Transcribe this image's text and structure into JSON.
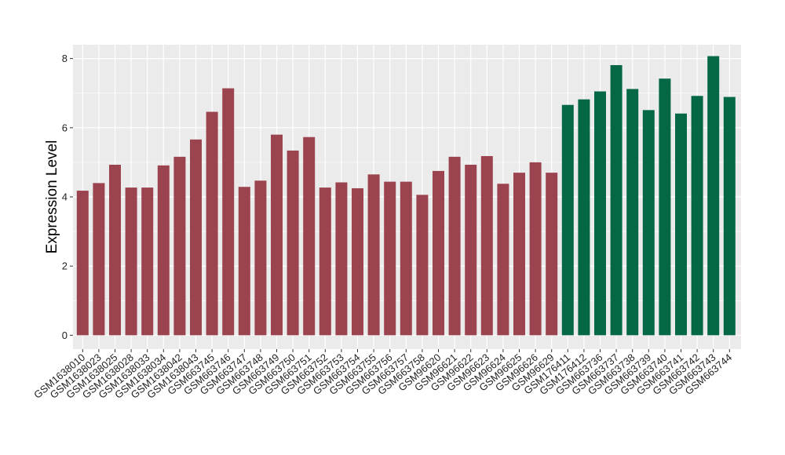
{
  "chart_data": {
    "type": "bar",
    "title": "",
    "xlabel": "",
    "ylabel": "Expression Level",
    "ylim": [
      -0.4,
      8.4
    ],
    "yticks": [
      0,
      2,
      4,
      6,
      8
    ],
    "grid": true,
    "colors": {
      "panel_background": "#ebebeb",
      "grid_major": "#ffffff",
      "group_a": "#9c4350",
      "group_b": "#056845"
    },
    "categories": [
      "GSM1638010",
      "GSM1638023",
      "GSM1638025",
      "GSM1638028",
      "GSM1638033",
      "GSM1638034",
      "GSM1638042",
      "GSM1638043",
      "GSM663745",
      "GSM663746",
      "GSM663747",
      "GSM663748",
      "GSM663749",
      "GSM663750",
      "GSM663751",
      "GSM663752",
      "GSM663753",
      "GSM663754",
      "GSM663755",
      "GSM663756",
      "GSM663757",
      "GSM663758",
      "GSM96620",
      "GSM96621",
      "GSM96622",
      "GSM96623",
      "GSM96624",
      "GSM96625",
      "GSM96626",
      "GSM96629",
      "GSM176411",
      "GSM176412",
      "GSM663736",
      "GSM663737",
      "GSM663738",
      "GSM663739",
      "GSM663740",
      "GSM663741",
      "GSM663742",
      "GSM663743",
      "GSM663744"
    ],
    "values": [
      4.18,
      4.4,
      4.93,
      4.27,
      4.27,
      4.91,
      5.16,
      5.66,
      6.46,
      7.14,
      4.29,
      4.47,
      5.8,
      5.34,
      5.73,
      4.27,
      4.42,
      4.25,
      4.65,
      4.44,
      4.44,
      4.06,
      4.75,
      5.16,
      4.93,
      5.18,
      4.38,
      4.7,
      5.0,
      4.7,
      6.66,
      6.82,
      7.05,
      7.81,
      7.12,
      6.51,
      7.42,
      6.41,
      6.92,
      8.07,
      6.89
    ],
    "groups": [
      "a",
      "a",
      "a",
      "a",
      "a",
      "a",
      "a",
      "a",
      "a",
      "a",
      "a",
      "a",
      "a",
      "a",
      "a",
      "a",
      "a",
      "a",
      "a",
      "a",
      "a",
      "a",
      "a",
      "a",
      "a",
      "a",
      "a",
      "a",
      "a",
      "a",
      "b",
      "b",
      "b",
      "b",
      "b",
      "b",
      "b",
      "b",
      "b",
      "b",
      "b"
    ]
  }
}
